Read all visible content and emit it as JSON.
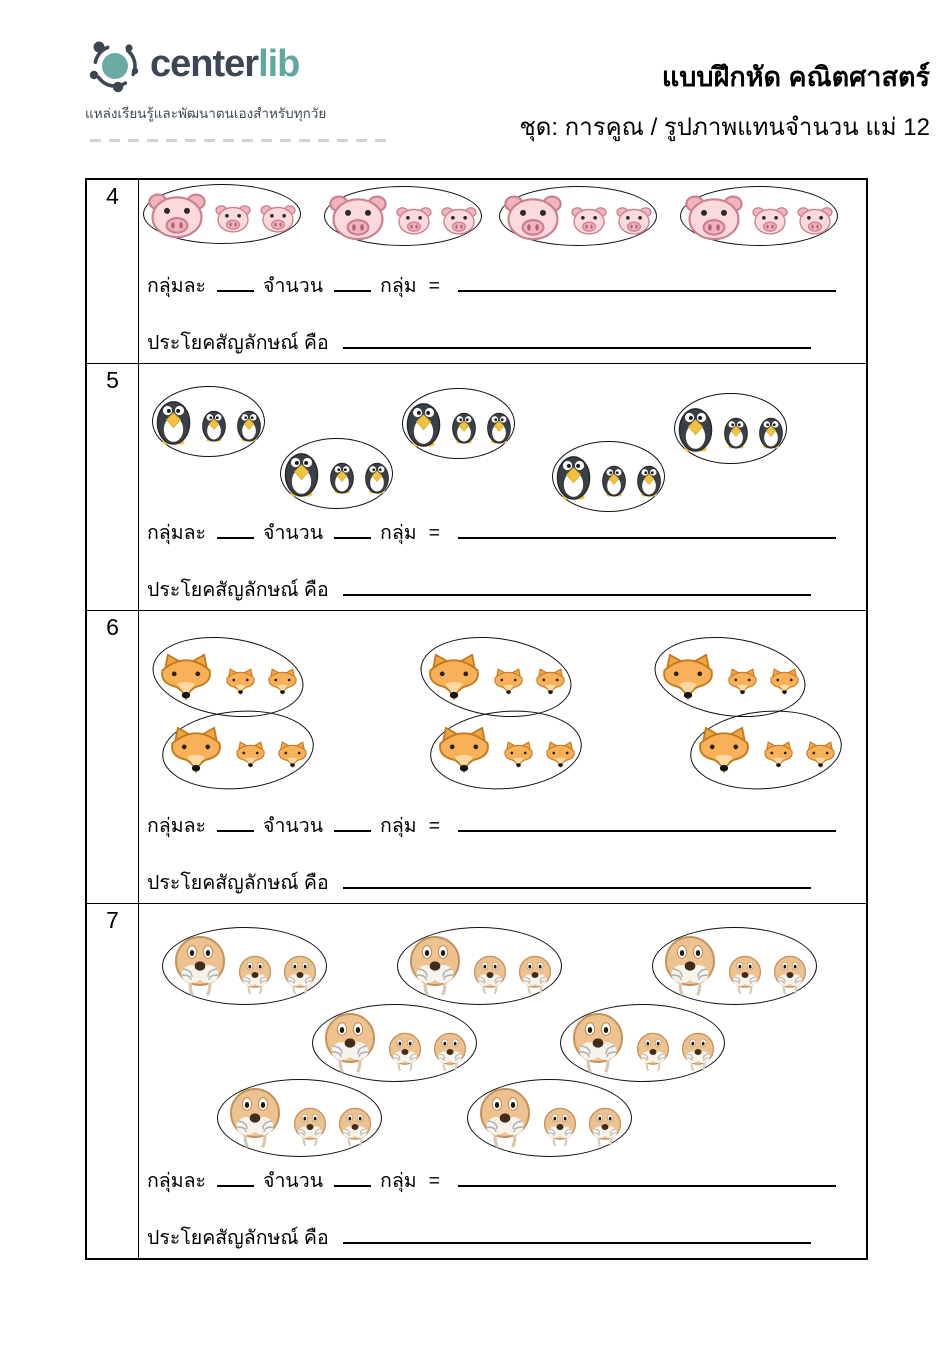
{
  "header": {
    "logo": {
      "brand_center": "center",
      "brand_lib": "lib",
      "tagline": "แหล่งเรียนรู้และพัฒนาตนเองสำหรับทุกวัย"
    },
    "title": "แบบฝึกหัด คณิตศาสตร์",
    "subtitle": "ชุด: การคูณ / รูปภาพแทนจำนวน แม่ 12"
  },
  "colors": {
    "brand_dark": "#3d4654",
    "brand_teal": "#5fa8a0",
    "pig_light": "#fbd9dd",
    "pig_dark": "#f3b3bd",
    "penguin_body": "#3a4046",
    "penguin_beak": "#f2c23d",
    "fox_fur": "#f8b158",
    "walrus_skin": "#edc28f"
  },
  "worksheet": {
    "labels": {
      "per_group": "กลุ่มละ",
      "amount": "จำนวน",
      "group": "กลุ่ม",
      "equals": "=",
      "sentence_prompt": "ประโยคสัญลักษณ์  คือ"
    },
    "rows": [
      {
        "number": "4",
        "animal": "pig",
        "groups": 4,
        "animals_per_group": 3
      },
      {
        "number": "5",
        "animal": "penguin",
        "groups": 5,
        "animals_per_group": 3
      },
      {
        "number": "6",
        "animal": "fox",
        "groups": 6,
        "animals_per_group": 3
      },
      {
        "number": "7",
        "animal": "walrus",
        "groups": 7,
        "animals_per_group": 3
      }
    ]
  }
}
